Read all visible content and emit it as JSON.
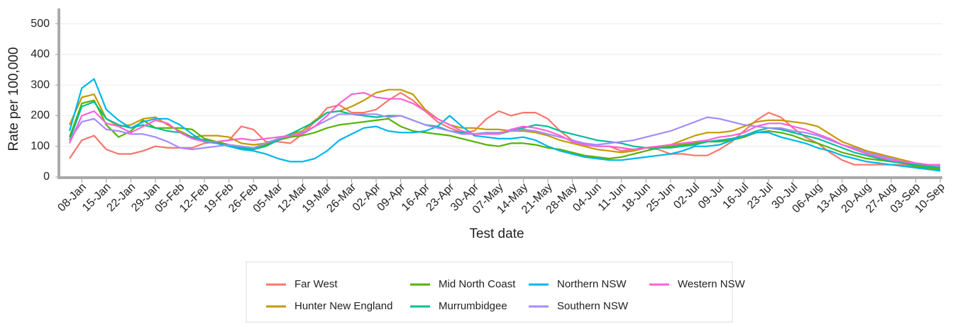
{
  "chart_data": {
    "type": "line",
    "y_label": "Rate per 100,000",
    "x_label": "Test date",
    "categories": [
      null,
      "08-Jan",
      null,
      "15-Jan",
      null,
      "22-Jan",
      null,
      "29-Jan",
      null,
      "05-Feb",
      null,
      "12-Feb",
      null,
      "19-Feb",
      null,
      "26-Feb",
      null,
      "05-Mar",
      null,
      "12-Mar",
      null,
      "19-Mar",
      null,
      "26-Mar",
      null,
      "02-Apr",
      null,
      "09-Apr",
      null,
      "16-Apr",
      null,
      "23-Apr",
      null,
      "30-Apr",
      null,
      "07-May",
      null,
      "14-May",
      null,
      "21-May",
      null,
      "28-May",
      null,
      "04-Jun",
      null,
      "11-Jun",
      null,
      "18-Jun",
      null,
      "25-Jun",
      null,
      "02-Jul",
      null,
      "09-Jul",
      null,
      "16-Jul",
      null,
      "23-Jul",
      null,
      "30-Jul",
      null,
      "06-Aug",
      null,
      "13-Aug",
      null,
      "20-Aug",
      null,
      "27-Aug",
      null,
      "03-Sep",
      null,
      "10-Sep"
    ],
    "ylim": [
      0,
      550
    ],
    "yticks": [
      0,
      100,
      200,
      300,
      400,
      500
    ],
    "grid": true,
    "series": [
      {
        "name": "Far West",
        "color": "#F8766D",
        "values": [
          60,
          120,
          135,
          90,
          75,
          75,
          85,
          100,
          95,
          95,
          95,
          110,
          115,
          120,
          165,
          155,
          115,
          115,
          110,
          140,
          180,
          225,
          235,
          210,
          210,
          220,
          250,
          275,
          250,
          215,
          180,
          160,
          145,
          150,
          190,
          215,
          200,
          210,
          210,
          190,
          150,
          120,
          105,
          100,
          100,
          85,
          90,
          95,
          90,
          75,
          75,
          70,
          70,
          90,
          115,
          150,
          185,
          210,
          195,
          160,
          130,
          110,
          80,
          55,
          40,
          40,
          40,
          40,
          40,
          30,
          25,
          20
        ]
      },
      {
        "name": "Hunter New England",
        "color": "#C49A00",
        "values": [
          170,
          260,
          270,
          190,
          165,
          170,
          190,
          195,
          170,
          150,
          130,
          135,
          135,
          130,
          110,
          105,
          110,
          125,
          140,
          150,
          185,
          210,
          215,
          230,
          250,
          275,
          285,
          285,
          270,
          220,
          190,
          170,
          160,
          160,
          155,
          155,
          150,
          150,
          145,
          135,
          120,
          110,
          100,
          90,
          85,
          80,
          85,
          95,
          100,
          105,
          120,
          135,
          145,
          145,
          150,
          165,
          180,
          185,
          185,
          180,
          175,
          165,
          140,
          115,
          100,
          85,
          75,
          65,
          55,
          45,
          40,
          35
        ]
      },
      {
        "name": "Mid North Coast",
        "color": "#53B400",
        "values": [
          130,
          240,
          250,
          170,
          130,
          150,
          185,
          160,
          160,
          160,
          155,
          125,
          115,
          105,
          100,
          90,
          105,
          120,
          130,
          135,
          145,
          160,
          170,
          175,
          180,
          185,
          190,
          165,
          150,
          145,
          140,
          135,
          125,
          115,
          105,
          100,
          110,
          110,
          105,
          95,
          90,
          80,
          70,
          65,
          60,
          65,
          75,
          85,
          95,
          100,
          105,
          110,
          115,
          115,
          120,
          130,
          145,
          150,
          145,
          135,
          120,
          110,
          95,
          80,
          70,
          60,
          55,
          50,
          45,
          35,
          30,
          25
        ]
      },
      {
        "name": "Murrumbidgee",
        "color": "#00C094",
        "values": [
          120,
          230,
          245,
          190,
          170,
          160,
          170,
          160,
          150,
          145,
          130,
          120,
          110,
          100,
          95,
          90,
          100,
          120,
          140,
          160,
          180,
          210,
          215,
          205,
          200,
          195,
          200,
          200,
          185,
          170,
          165,
          150,
          145,
          140,
          145,
          140,
          150,
          160,
          170,
          165,
          150,
          140,
          130,
          120,
          115,
          110,
          100,
          95,
          95,
          95,
          100,
          105,
          115,
          120,
          125,
          135,
          150,
          160,
          155,
          145,
          135,
          125,
          110,
          95,
          80,
          70,
          60,
          50,
          45,
          40,
          35,
          30
        ]
      },
      {
        "name": "Northern NSW",
        "color": "#00B6EB",
        "values": [
          150,
          290,
          320,
          220,
          185,
          160,
          180,
          190,
          190,
          170,
          140,
          115,
          110,
          100,
          90,
          85,
          75,
          60,
          50,
          50,
          60,
          85,
          120,
          140,
          160,
          165,
          150,
          145,
          145,
          150,
          165,
          200,
          165,
          135,
          130,
          125,
          125,
          130,
          120,
          100,
          85,
          75,
          65,
          60,
          55,
          55,
          60,
          65,
          70,
          75,
          85,
          100,
          100,
          105,
          120,
          135,
          145,
          145,
          130,
          120,
          110,
          95,
          85,
          70,
          60,
          50,
          45,
          40,
          35,
          30,
          25,
          20
        ]
      },
      {
        "name": "Southern NSW",
        "color": "#A58AFF",
        "values": [
          120,
          180,
          190,
          155,
          150,
          140,
          140,
          130,
          115,
          95,
          90,
          95,
          100,
          105,
          100,
          95,
          110,
          125,
          135,
          145,
          165,
          185,
          205,
          205,
          205,
          205,
          195,
          200,
          185,
          170,
          160,
          150,
          140,
          140,
          145,
          145,
          150,
          155,
          150,
          140,
          130,
          120,
          110,
          105,
          110,
          115,
          120,
          130,
          140,
          150,
          165,
          180,
          195,
          190,
          180,
          170,
          165,
          160,
          160,
          150,
          145,
          135,
          120,
          105,
          95,
          80,
          70,
          60,
          50,
          45,
          40,
          35
        ]
      },
      {
        "name": "Western NSW",
        "color": "#FB61D7",
        "values": [
          110,
          200,
          215,
          175,
          165,
          145,
          165,
          185,
          175,
          145,
          125,
          115,
          115,
          120,
          125,
          120,
          125,
          130,
          135,
          140,
          165,
          200,
          240,
          270,
          275,
          260,
          255,
          255,
          240,
          215,
          190,
          170,
          150,
          140,
          140,
          140,
          155,
          165,
          160,
          150,
          135,
          115,
          105,
          100,
          100,
          95,
          90,
          95,
          100,
          105,
          110,
          115,
          120,
          130,
          135,
          145,
          165,
          175,
          175,
          165,
          155,
          140,
          125,
          105,
          90,
          75,
          65,
          55,
          50,
          45,
          40,
          40
        ]
      }
    ]
  }
}
